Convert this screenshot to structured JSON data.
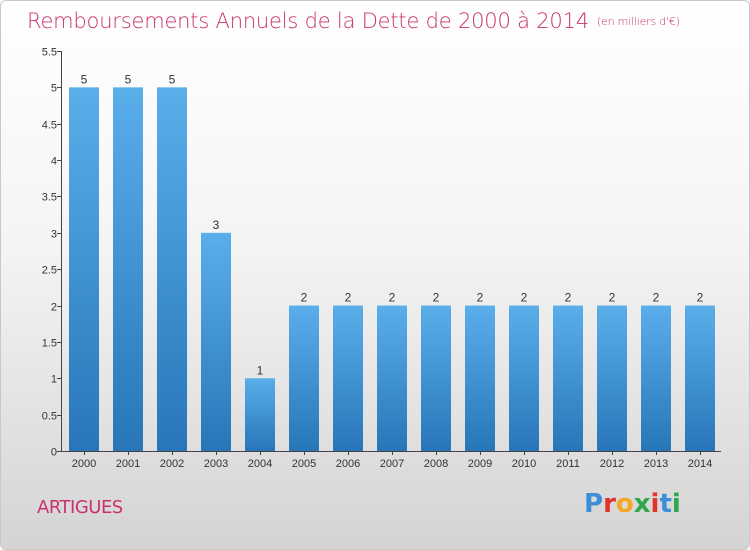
{
  "header": {
    "title": "Remboursements Annuels de la Dette de 2000 à 2014",
    "unit": "(en milliers d'€)"
  },
  "footer": {
    "commune": "ARTIGUES",
    "logo": {
      "letters": [
        "P",
        "r",
        "o",
        "x",
        "i",
        "t",
        "i"
      ],
      "colors": [
        "#3a8fd6",
        "#e0342c",
        "#f5a623",
        "#2da84a",
        "#e0342c",
        "#3a8fd6",
        "#2da84a"
      ]
    }
  },
  "chart_data": {
    "type": "bar",
    "categories": [
      "2000",
      "2001",
      "2002",
      "2003",
      "2004",
      "2005",
      "2006",
      "2007",
      "2008",
      "2009",
      "2010",
      "2011",
      "2012",
      "2013",
      "2014"
    ],
    "values": [
      5,
      5,
      5,
      3,
      1,
      2,
      2,
      2,
      2,
      2,
      2,
      2,
      2,
      2,
      2
    ],
    "ylim": [
      0,
      5.5
    ],
    "yticks": [
      "0",
      "0.5",
      "1",
      "1.5",
      "2",
      "2.5",
      "3",
      "3.5",
      "4",
      "4.5",
      "5",
      "5.5"
    ],
    "grid": false,
    "bar_color_top": "#5aaeea",
    "bar_color_bottom": "#2876b8"
  }
}
